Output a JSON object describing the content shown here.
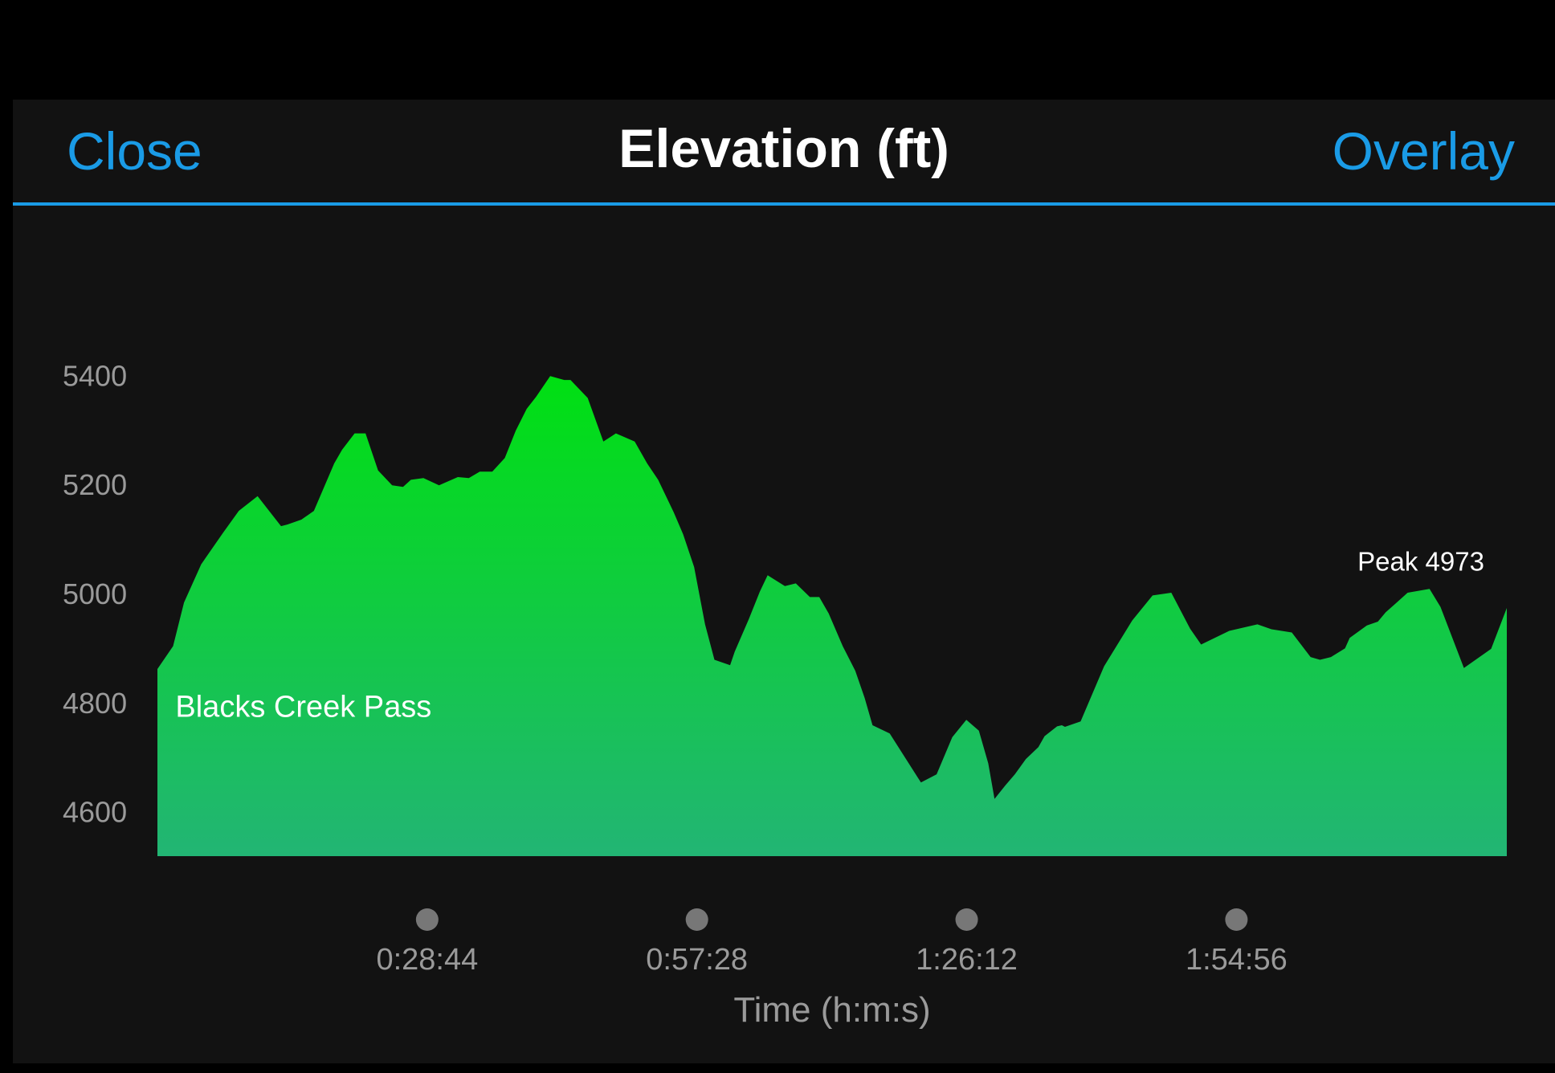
{
  "header": {
    "close_label": "Close",
    "title": "Elevation (ft)",
    "overlay_label": "Overlay"
  },
  "chart_data": {
    "type": "area",
    "title": "Elevation (ft)",
    "xlabel": "Time (h:m:s)",
    "ylabel": "",
    "x_unit": "seconds",
    "x_range": [
      0,
      8624
    ],
    "ylim": [
      4520,
      5480
    ],
    "y_ticks": [
      5400,
      5200,
      5000,
      4800,
      4600
    ],
    "x_ticks": [
      {
        "value": 1724,
        "label": "0:28:44"
      },
      {
        "value": 3448,
        "label": "0:57:28"
      },
      {
        "value": 5172,
        "label": "1:26:12"
      },
      {
        "value": 6896,
        "label": "1:54:56"
      }
    ],
    "annotations": [
      {
        "text": "Blacks Creek Pass",
        "x": 115,
        "y": 4793
      },
      {
        "text": "Peak 4973",
        "x": 7670,
        "y": 5060
      }
    ],
    "colors": {
      "fill_top": "#00e012",
      "fill_bottom": "#22b574",
      "text": "#ffffff",
      "tick": "#9a9a9a",
      "accent": "#1a9be6"
    },
    "series": [
      {
        "x": [
          0,
          100,
          170,
          280,
          420,
          520,
          640,
          790,
          830,
          920,
          1000,
          1130,
          1180,
          1260,
          1330,
          1410,
          1500,
          1570,
          1620,
          1700,
          1800,
          1920,
          1990,
          2060,
          2140,
          2220,
          2290,
          2360,
          2420,
          2510,
          2600,
          2640,
          2750,
          2850,
          2930,
          3050,
          3130,
          3200,
          3300,
          3360,
          3430,
          3500,
          3560,
          3660,
          3690,
          3780,
          3850,
          3900,
          4010,
          4080,
          4170,
          4230,
          4290,
          4380,
          4460,
          4520,
          4570,
          4680,
          4880,
          4980,
          5080,
          5170,
          5250,
          5310,
          5350,
          5420,
          5480,
          5550,
          5630,
          5670,
          5750,
          5780,
          5800,
          5900,
          6050,
          6230,
          6360,
          6480,
          6600,
          6670,
          6850,
          7030,
          7120,
          7250,
          7370,
          7430,
          7500,
          7590,
          7620,
          7730,
          7800,
          7850,
          7920,
          7990,
          8130,
          8200,
          8350,
          8524,
          8624
        ],
        "y": [
          4863,
          4905,
          4985,
          5055,
          5113,
          5153,
          5180,
          5125,
          5128,
          5137,
          5153,
          5240,
          5265,
          5295,
          5295,
          5227,
          5200,
          5197,
          5210,
          5213,
          5200,
          5215,
          5213,
          5225,
          5225,
          5250,
          5300,
          5340,
          5362,
          5400,
          5393,
          5393,
          5360,
          5280,
          5295,
          5280,
          5240,
          5210,
          5150,
          5110,
          5050,
          4945,
          4880,
          4870,
          4895,
          4955,
          5005,
          5035,
          5015,
          5020,
          4995,
          4995,
          4965,
          4905,
          4860,
          4810,
          4760,
          4745,
          4655,
          4670,
          4738,
          4770,
          4750,
          4690,
          4625,
          4650,
          4670,
          4698,
          4720,
          4740,
          4758,
          4760,
          4757,
          4767,
          4868,
          4952,
          4998,
          5003,
          4937,
          4908,
          4933,
          4945,
          4936,
          4930,
          4885,
          4880,
          4885,
          4901,
          4920,
          4943,
          4950,
          4967,
          4985,
          5003,
          5010,
          4977,
          4865,
          4900,
          4975
        ]
      }
    ]
  }
}
